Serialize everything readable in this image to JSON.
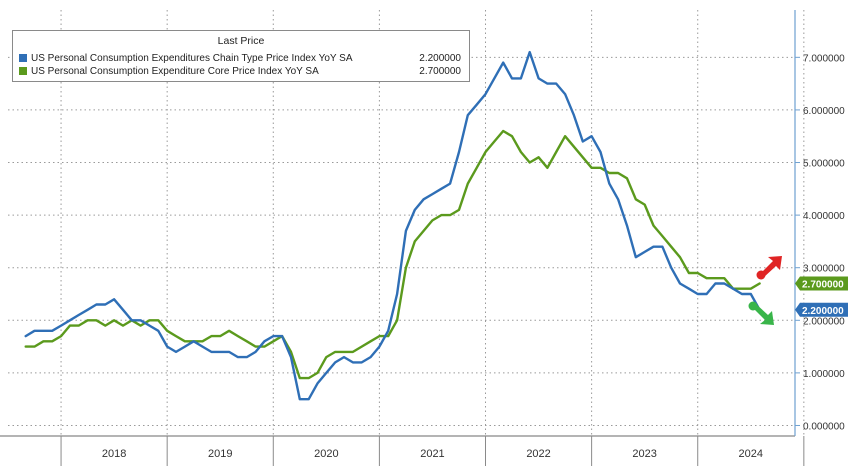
{
  "chart_data": {
    "type": "line",
    "legend": {
      "title": "Last Price",
      "placement": "top-left"
    },
    "series": [
      {
        "name": "US Personal Consumption Expenditures Chain Type Price Index YoY SA",
        "last_price": "2.200000",
        "color": "#2f6fb6",
        "values": [
          [
            "2017-09",
            1.7
          ],
          [
            "2017-10",
            1.8
          ],
          [
            "2017-11",
            1.8
          ],
          [
            "2017-12",
            1.8
          ],
          [
            "2018-01",
            1.9
          ],
          [
            "2018-02",
            2.0
          ],
          [
            "2018-03",
            2.1
          ],
          [
            "2018-04",
            2.2
          ],
          [
            "2018-05",
            2.3
          ],
          [
            "2018-06",
            2.3
          ],
          [
            "2018-07",
            2.4
          ],
          [
            "2018-08",
            2.2
          ],
          [
            "2018-09",
            2.0
          ],
          [
            "2018-10",
            2.0
          ],
          [
            "2018-11",
            1.9
          ],
          [
            "2018-12",
            1.8
          ],
          [
            "2019-01",
            1.5
          ],
          [
            "2019-02",
            1.4
          ],
          [
            "2019-03",
            1.5
          ],
          [
            "2019-04",
            1.6
          ],
          [
            "2019-05",
            1.5
          ],
          [
            "2019-06",
            1.4
          ],
          [
            "2019-07",
            1.4
          ],
          [
            "2019-08",
            1.4
          ],
          [
            "2019-09",
            1.3
          ],
          [
            "2019-10",
            1.3
          ],
          [
            "2019-11",
            1.4
          ],
          [
            "2019-12",
            1.6
          ],
          [
            "2020-01",
            1.7
          ],
          [
            "2020-02",
            1.7
          ],
          [
            "2020-03",
            1.3
          ],
          [
            "2020-04",
            0.5
          ],
          [
            "2020-05",
            0.5
          ],
          [
            "2020-06",
            0.8
          ],
          [
            "2020-07",
            1.0
          ],
          [
            "2020-08",
            1.2
          ],
          [
            "2020-09",
            1.3
          ],
          [
            "2020-10",
            1.2
          ],
          [
            "2020-11",
            1.2
          ],
          [
            "2020-12",
            1.3
          ],
          [
            "2021-01",
            1.5
          ],
          [
            "2021-02",
            1.8
          ],
          [
            "2021-03",
            2.5
          ],
          [
            "2021-04",
            3.7
          ],
          [
            "2021-05",
            4.1
          ],
          [
            "2021-06",
            4.3
          ],
          [
            "2021-07",
            4.4
          ],
          [
            "2021-08",
            4.5
          ],
          [
            "2021-09",
            4.6
          ],
          [
            "2021-10",
            5.2
          ],
          [
            "2021-11",
            5.9
          ],
          [
            "2021-12",
            6.1
          ],
          [
            "2022-01",
            6.3
          ],
          [
            "2022-02",
            6.6
          ],
          [
            "2022-03",
            6.9
          ],
          [
            "2022-04",
            6.6
          ],
          [
            "2022-05",
            6.6
          ],
          [
            "2022-06",
            7.1
          ],
          [
            "2022-07",
            6.6
          ],
          [
            "2022-08",
            6.5
          ],
          [
            "2022-09",
            6.5
          ],
          [
            "2022-10",
            6.3
          ],
          [
            "2022-11",
            5.9
          ],
          [
            "2022-12",
            5.4
          ],
          [
            "2023-01",
            5.5
          ],
          [
            "2023-02",
            5.2
          ],
          [
            "2023-03",
            4.6
          ],
          [
            "2023-04",
            4.3
          ],
          [
            "2023-05",
            3.8
          ],
          [
            "2023-06",
            3.2
          ],
          [
            "2023-07",
            3.3
          ],
          [
            "2023-08",
            3.4
          ],
          [
            "2023-09",
            3.4
          ],
          [
            "2023-10",
            3.0
          ],
          [
            "2023-11",
            2.7
          ],
          [
            "2023-12",
            2.6
          ],
          [
            "2024-01",
            2.5
          ],
          [
            "2024-02",
            2.5
          ],
          [
            "2024-03",
            2.7
          ],
          [
            "2024-04",
            2.7
          ],
          [
            "2024-05",
            2.6
          ],
          [
            "2024-06",
            2.5
          ],
          [
            "2024-07",
            2.5
          ],
          [
            "2024-08",
            2.2
          ]
        ]
      },
      {
        "name": "US Personal Consumption Expenditure Core Price Index YoY SA",
        "last_price": "2.700000",
        "color": "#5b9a1d",
        "values": [
          [
            "2017-09",
            1.5
          ],
          [
            "2017-10",
            1.5
          ],
          [
            "2017-11",
            1.6
          ],
          [
            "2017-12",
            1.6
          ],
          [
            "2018-01",
            1.7
          ],
          [
            "2018-02",
            1.9
          ],
          [
            "2018-03",
            1.9
          ],
          [
            "2018-04",
            2.0
          ],
          [
            "2018-05",
            2.0
          ],
          [
            "2018-06",
            1.9
          ],
          [
            "2018-07",
            2.0
          ],
          [
            "2018-08",
            1.9
          ],
          [
            "2018-09",
            2.0
          ],
          [
            "2018-10",
            1.9
          ],
          [
            "2018-11",
            2.0
          ],
          [
            "2018-12",
            2.0
          ],
          [
            "2019-01",
            1.8
          ],
          [
            "2019-02",
            1.7
          ],
          [
            "2019-03",
            1.6
          ],
          [
            "2019-04",
            1.6
          ],
          [
            "2019-05",
            1.6
          ],
          [
            "2019-06",
            1.7
          ],
          [
            "2019-07",
            1.7
          ],
          [
            "2019-08",
            1.8
          ],
          [
            "2019-09",
            1.7
          ],
          [
            "2019-10",
            1.6
          ],
          [
            "2019-11",
            1.5
          ],
          [
            "2019-12",
            1.5
          ],
          [
            "2020-01",
            1.6
          ],
          [
            "2020-02",
            1.7
          ],
          [
            "2020-03",
            1.4
          ],
          [
            "2020-04",
            0.9
          ],
          [
            "2020-05",
            0.9
          ],
          [
            "2020-06",
            1.0
          ],
          [
            "2020-07",
            1.3
          ],
          [
            "2020-08",
            1.4
          ],
          [
            "2020-09",
            1.4
          ],
          [
            "2020-10",
            1.4
          ],
          [
            "2020-11",
            1.5
          ],
          [
            "2020-12",
            1.6
          ],
          [
            "2021-01",
            1.7
          ],
          [
            "2021-02",
            1.7
          ],
          [
            "2021-03",
            2.0
          ],
          [
            "2021-04",
            3.0
          ],
          [
            "2021-05",
            3.5
          ],
          [
            "2021-06",
            3.7
          ],
          [
            "2021-07",
            3.9
          ],
          [
            "2021-08",
            4.0
          ],
          [
            "2021-09",
            4.0
          ],
          [
            "2021-10",
            4.1
          ],
          [
            "2021-11",
            4.6
          ],
          [
            "2021-12",
            4.9
          ],
          [
            "2022-01",
            5.2
          ],
          [
            "2022-02",
            5.4
          ],
          [
            "2022-03",
            5.6
          ],
          [
            "2022-04",
            5.5
          ],
          [
            "2022-05",
            5.2
          ],
          [
            "2022-06",
            5.0
          ],
          [
            "2022-07",
            5.1
          ],
          [
            "2022-08",
            4.9
          ],
          [
            "2022-09",
            5.2
          ],
          [
            "2022-10",
            5.5
          ],
          [
            "2022-11",
            5.3
          ],
          [
            "2022-12",
            5.1
          ],
          [
            "2023-01",
            4.9
          ],
          [
            "2023-02",
            4.9
          ],
          [
            "2023-03",
            4.8
          ],
          [
            "2023-04",
            4.8
          ],
          [
            "2023-05",
            4.7
          ],
          [
            "2023-06",
            4.3
          ],
          [
            "2023-07",
            4.2
          ],
          [
            "2023-08",
            3.8
          ],
          [
            "2023-09",
            3.6
          ],
          [
            "2023-10",
            3.4
          ],
          [
            "2023-11",
            3.2
          ],
          [
            "2023-12",
            2.9
          ],
          [
            "2024-01",
            2.9
          ],
          [
            "2024-02",
            2.8
          ],
          [
            "2024-03",
            2.8
          ],
          [
            "2024-04",
            2.8
          ],
          [
            "2024-05",
            2.6
          ],
          [
            "2024-06",
            2.6
          ],
          [
            "2024-07",
            2.6
          ],
          [
            "2024-08",
            2.7
          ]
        ]
      }
    ],
    "x_range": [
      "2017-09",
      "2024-08"
    ],
    "xlim": [
      "2017-07",
      "2024-12"
    ],
    "x_tick_labels": [
      "2018",
      "2019",
      "2020",
      "2021",
      "2022",
      "2023",
      "2024"
    ],
    "ylim": [
      -0.2,
      7.9
    ],
    "y_ticks": [
      0,
      1,
      2,
      3,
      4,
      5,
      6,
      7
    ],
    "y_tick_labels": [
      "0.000000",
      "1.000000",
      "2.000000",
      "3.000000",
      "4.000000",
      "5.000000",
      "6.000000",
      "7.000000"
    ],
    "y_axis_side": "right",
    "grid": true,
    "last_value_tags": [
      {
        "label": "2.700000",
        "value": 2.7,
        "color": "#5b9a1d"
      },
      {
        "label": "2.200000",
        "value": 2.2,
        "color": "#2f6fb6"
      }
    ],
    "annotations": [
      {
        "icon": "red-arrow-up-icon",
        "color": "#e02424",
        "direction": "up"
      },
      {
        "icon": "green-arrow-down-icon",
        "color": "#39b54a",
        "direction": "down"
      }
    ]
  }
}
